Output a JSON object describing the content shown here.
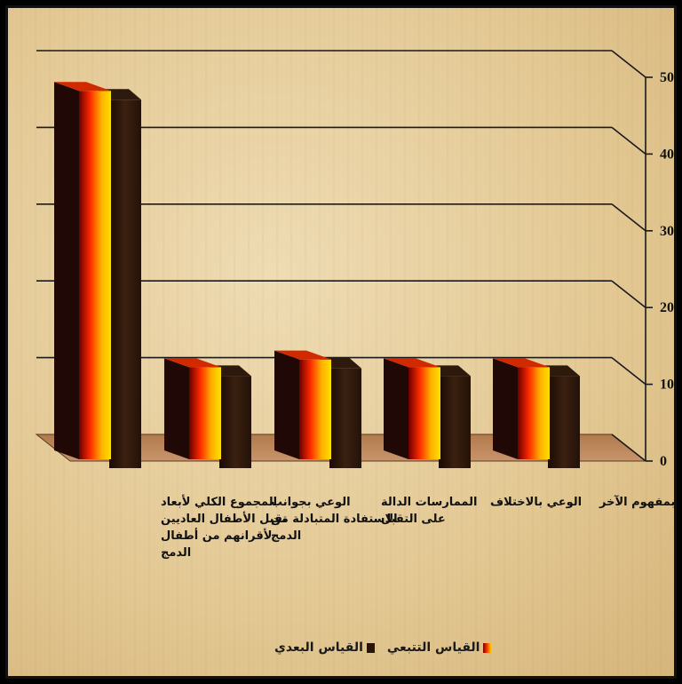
{
  "chart_data": {
    "type": "bar",
    "title": "",
    "xlabel": "",
    "ylabel": "",
    "ylim": [
      0,
      50
    ],
    "yticks": [
      0,
      10,
      20,
      30,
      40,
      50
    ],
    "categories": [
      "المجموع الكلي لأبعاد تقبل الأطفال العاديين لأقرانهم من أطفال الدمج",
      "الوعي بجوانب الاستفادة المتبادلة من الدمج",
      "الممارسات الدالة على التقبل",
      "الوعي بالاختلاف",
      "الوعي بمفهوم الآخر"
    ],
    "category_lines": [
      [
        "المجموع الكلي لأبعاد",
        "تقبل الأطفال العاديين",
        "لأقرانهم من أطفال",
        "الدمج"
      ],
      [
        "الوعي بجوانب",
        "الاستفادة المتبادلة من",
        "الدمج"
      ],
      [
        "الممارسات الدالة",
        "على التقبل"
      ],
      [
        "الوعي بالاختلاف"
      ],
      [
        "الوعي بمفهوم الآخر"
      ]
    ],
    "series": [
      {
        "name": "القياس البعدي",
        "values": [
          48,
          12,
          13,
          12,
          12
        ],
        "color": "#2a1408"
      },
      {
        "name": "القياس التتبعي",
        "values": [
          48,
          12,
          13,
          12,
          12
        ],
        "color": "#ff3300"
      }
    ],
    "grid": true,
    "legend_position": "bottom"
  }
}
